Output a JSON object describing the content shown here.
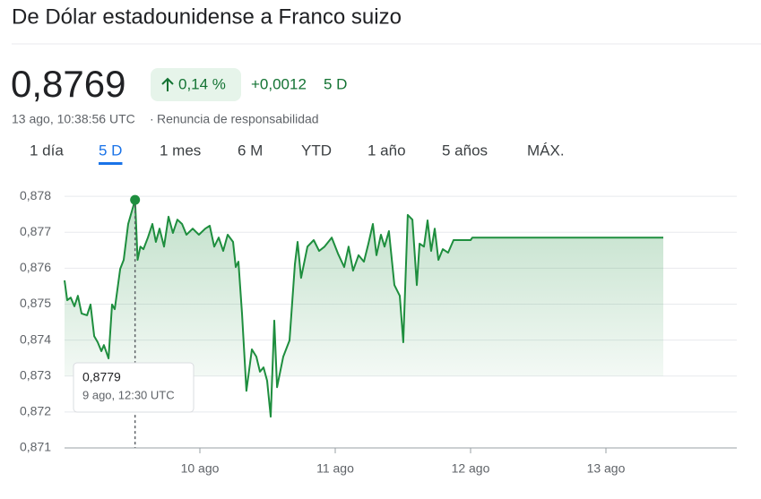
{
  "header": {
    "title": "De Dólar estadounidense a Franco suizo",
    "price": "0,8769",
    "change_percent": "0,14 %",
    "change": "+0,0012",
    "period": "5 D",
    "timestamp": "13 ago, 10:38:56 UTC",
    "disclaimer": "Renuncia de responsabilidad"
  },
  "tabs": {
    "items": [
      "1 día",
      "5 D",
      "1 mes",
      "6 M",
      "YTD",
      "1 año",
      "5 años",
      "MÁX."
    ],
    "selected": 1
  },
  "chart_data": {
    "type": "line",
    "color": "#1e8e3e",
    "x": [
      9.0,
      9.02,
      9.046,
      9.073,
      9.099,
      9.126,
      9.166,
      9.192,
      9.219,
      9.245,
      9.272,
      9.291,
      9.325,
      9.351,
      9.371,
      9.411,
      9.437,
      9.47,
      9.521,
      9.54,
      9.56,
      9.583,
      9.616,
      9.649,
      9.675,
      9.702,
      9.735,
      9.768,
      9.801,
      9.834,
      9.868,
      9.901,
      9.947,
      9.993,
      10.04,
      10.073,
      10.106,
      10.139,
      10.172,
      10.205,
      10.245,
      10.265,
      10.285,
      10.311,
      10.344,
      10.384,
      10.417,
      10.444,
      10.47,
      10.497,
      10.523,
      10.55,
      10.57,
      10.616,
      10.662,
      10.702,
      10.722,
      10.748,
      10.795,
      10.841,
      10.881,
      10.921,
      10.974,
      11.02,
      11.066,
      11.099,
      11.132,
      11.172,
      11.212,
      11.245,
      11.278,
      11.305,
      11.338,
      11.364,
      11.397,
      11.437,
      11.477,
      11.503,
      11.536,
      11.57,
      11.603,
      11.623,
      11.656,
      11.682,
      11.709,
      11.735,
      11.762,
      11.795,
      11.834,
      11.874,
      12.0,
      12.013,
      13.424
    ],
    "values": [
      0.87566,
      0.87511,
      0.87518,
      0.87494,
      0.87523,
      0.87474,
      0.87469,
      0.87499,
      0.87411,
      0.87394,
      0.87369,
      0.87386,
      0.87349,
      0.87499,
      0.87486,
      0.87598,
      0.87623,
      0.87723,
      0.8779,
      0.87623,
      0.8766,
      0.87653,
      0.87685,
      0.87723,
      0.87673,
      0.8771,
      0.8766,
      0.87743,
      0.87698,
      0.87735,
      0.87723,
      0.87693,
      0.8771,
      0.87693,
      0.8771,
      0.87718,
      0.8766,
      0.87685,
      0.87648,
      0.87693,
      0.87673,
      0.87603,
      0.87618,
      0.87474,
      0.87259,
      0.87374,
      0.87354,
      0.87312,
      0.87324,
      0.87287,
      0.87187,
      0.87454,
      0.87269,
      0.87354,
      0.87399,
      0.87611,
      0.87673,
      0.87573,
      0.8766,
      0.87678,
      0.87648,
      0.8766,
      0.87685,
      0.87641,
      0.87603,
      0.8766,
      0.87593,
      0.87636,
      0.87618,
      0.87668,
      0.87723,
      0.87636,
      0.87693,
      0.8766,
      0.87703,
      0.87553,
      0.87523,
      0.87394,
      0.87748,
      0.87735,
      0.87553,
      0.87668,
      0.8766,
      0.87733,
      0.87648,
      0.8771,
      0.87623,
      0.87653,
      0.87643,
      0.87678,
      0.87678,
      0.87685,
      0.87685
    ],
    "xlim": [
      9,
      13.967
    ],
    "ylim": [
      0.871,
      0.8785
    ],
    "xticks": [
      {
        "value": 10,
        "label": "10 ago"
      },
      {
        "value": 11,
        "label": "11 ago"
      },
      {
        "value": 12,
        "label": "12 ago"
      },
      {
        "value": 13,
        "label": "13 ago"
      }
    ],
    "yticks": [
      {
        "value": 0.871,
        "label": "0,871"
      },
      {
        "value": 0.872,
        "label": "0,872"
      },
      {
        "value": 0.873,
        "label": "0,873"
      },
      {
        "value": 0.874,
        "label": "0,874"
      },
      {
        "value": 0.875,
        "label": "0,875"
      },
      {
        "value": 0.876,
        "label": "0,876"
      },
      {
        "value": 0.877,
        "label": "0,877"
      },
      {
        "value": 0.878,
        "label": "0,878"
      }
    ],
    "grid": true,
    "tooltip": {
      "x": 9.521,
      "y": 0.8779,
      "label": "0,8779",
      "time": "9 ago, 12:30 UTC"
    }
  }
}
